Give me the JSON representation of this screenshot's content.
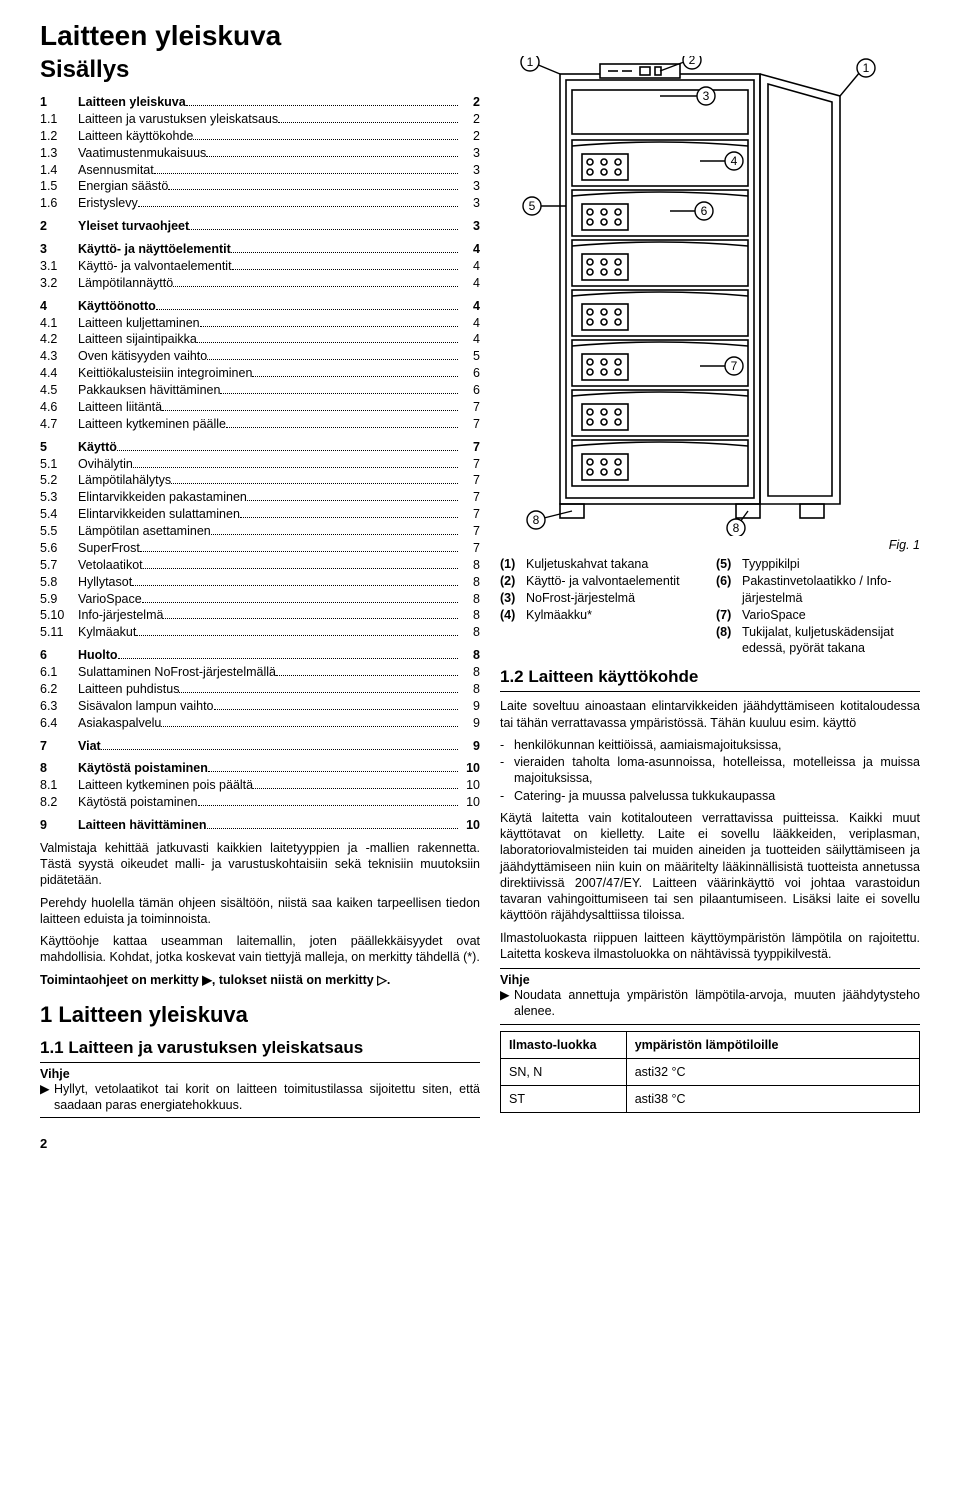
{
  "page_title": "Laitteen yleiskuva",
  "toc_heading": "Sisällys",
  "toc": [
    {
      "n": "1",
      "t": "Laitteen yleiskuva",
      "p": "2",
      "b": true,
      "gap": false
    },
    {
      "n": "1.1",
      "t": "Laitteen ja varustuksen yleiskatsaus",
      "p": "2",
      "b": false
    },
    {
      "n": "1.2",
      "t": "Laitteen käyttökohde",
      "p": "2",
      "b": false
    },
    {
      "n": "1.3",
      "t": "Vaatimustenmukaisuus",
      "p": "3",
      "b": false
    },
    {
      "n": "1.4",
      "t": "Asennusmitat",
      "p": "3",
      "b": false
    },
    {
      "n": "1.5",
      "t": "Energian säästö",
      "p": "3",
      "b": false
    },
    {
      "n": "1.6",
      "t": "Eristyslevy",
      "p": "3",
      "b": false
    },
    {
      "n": "2",
      "t": "Yleiset turvaohjeet",
      "p": "3",
      "b": true,
      "gap": true
    },
    {
      "n": "3",
      "t": "Käyttö- ja näyttöelementit",
      "p": "4",
      "b": true,
      "gap": true
    },
    {
      "n": "3.1",
      "t": "Käyttö- ja valvontaelementit",
      "p": "4",
      "b": false
    },
    {
      "n": "3.2",
      "t": "Lämpötilannäyttö",
      "p": "4",
      "b": false
    },
    {
      "n": "4",
      "t": "Käyttöönotto",
      "p": "4",
      "b": true,
      "gap": true
    },
    {
      "n": "4.1",
      "t": "Laitteen kuljettaminen",
      "p": "4",
      "b": false
    },
    {
      "n": "4.2",
      "t": "Laitteen sijaintipaikka",
      "p": "4",
      "b": false
    },
    {
      "n": "4.3",
      "t": "Oven kätisyyden vaihto",
      "p": "5",
      "b": false
    },
    {
      "n": "4.4",
      "t": "Keittiökalusteisiin integroiminen",
      "p": "6",
      "b": false
    },
    {
      "n": "4.5",
      "t": "Pakkauksen hävittäminen",
      "p": "6",
      "b": false
    },
    {
      "n": "4.6",
      "t": "Laitteen liitäntä",
      "p": "7",
      "b": false
    },
    {
      "n": "4.7",
      "t": "Laitteen kytkeminen päälle",
      "p": "7",
      "b": false
    },
    {
      "n": "5",
      "t": "Käyttö",
      "p": "7",
      "b": true,
      "gap": true
    },
    {
      "n": "5.1",
      "t": "Ovihälytin",
      "p": "7",
      "b": false
    },
    {
      "n": "5.2",
      "t": "Lämpötilahälytys",
      "p": "7",
      "b": false
    },
    {
      "n": "5.3",
      "t": "Elintarvikkeiden pakastaminen",
      "p": "7",
      "b": false
    },
    {
      "n": "5.4",
      "t": "Elintarvikkeiden sulattaminen",
      "p": "7",
      "b": false
    },
    {
      "n": "5.5",
      "t": "Lämpötilan asettaminen",
      "p": "7",
      "b": false
    },
    {
      "n": "5.6",
      "t": "SuperFrost",
      "p": "7",
      "b": false
    },
    {
      "n": "5.7",
      "t": "Vetolaatikot",
      "p": "8",
      "b": false
    },
    {
      "n": "5.8",
      "t": "Hyllytasot",
      "p": "8",
      "b": false
    },
    {
      "n": "5.9",
      "t": "VarioSpace",
      "p": "8",
      "b": false
    },
    {
      "n": "5.10",
      "t": "Info-järjestelmä",
      "p": "8",
      "b": false
    },
    {
      "n": "5.11",
      "t": "Kylmäakut",
      "p": "8",
      "b": false
    },
    {
      "n": "6",
      "t": "Huolto",
      "p": "8",
      "b": true,
      "gap": true
    },
    {
      "n": "6.1",
      "t": "Sulattaminen NoFrost-järjestelmällä",
      "p": "8",
      "b": false
    },
    {
      "n": "6.2",
      "t": "Laitteen puhdistus",
      "p": "8",
      "b": false
    },
    {
      "n": "6.3",
      "t": "Sisävalon lampun vaihto",
      "p": "9",
      "b": false
    },
    {
      "n": "6.4",
      "t": "Asiakaspalvelu",
      "p": "9",
      "b": false
    },
    {
      "n": "7",
      "t": "Viat",
      "p": "9",
      "b": true,
      "gap": true
    },
    {
      "n": "8",
      "t": "Käytöstä poistaminen",
      "p": "10",
      "b": true,
      "gap": true
    },
    {
      "n": "8.1",
      "t": "Laitteen kytkeminen pois päältä",
      "p": "10",
      "b": false
    },
    {
      "n": "8.2",
      "t": "Käytöstä poistaminen",
      "p": "10",
      "b": false
    },
    {
      "n": "9",
      "t": "Laitteen hävittäminen",
      "p": "10",
      "b": true,
      "gap": true
    }
  ],
  "left_paras": [
    "Valmistaja kehittää jatkuvasti kaikkien laitetyyppien ja -mallien rakennetta. Tästä syystä oikeudet malli- ja varustuskohtaisiin sekä teknisiin muutoksiin pidätetään.",
    "Perehdy huolella tämän ohjeen sisältöön, niistä saa kaiken tarpeellisen tiedon laitteen eduista ja toiminnoista.",
    "Käyttöohje kattaa useamman laitemallin, joten päällekkäisyydet ovat mahdollisia. Kohdat, jotka koskevat vain tiettyjä malleja, on merkitty tähdellä (*)."
  ],
  "left_para_bold": "Toimintaohjeet on merkitty ▶, tulokset niistä on merkitty ▷.",
  "left_h1": "1 Laitteen yleiskuva",
  "left_h2": "1.1 Laitteen ja varustuksen yleiskatsaus",
  "left_hint_label": "Vihje",
  "left_hint": "Hyllyt, vetolaatikot tai korit on laitteen toimitustilassa sijoitettu siten, että saadaan paras energiatehokkuus.",
  "fig_caption": "Fig. 1",
  "legend_left": [
    {
      "n": "(1)",
      "t": "Kuljetuskahvat takana"
    },
    {
      "n": "(2)",
      "t": "Käyttö- ja valvontaelementit"
    },
    {
      "n": "(3)",
      "t": "NoFrost-järjestelmä"
    },
    {
      "n": "(4)",
      "t": "Kylmäakku*"
    }
  ],
  "legend_right": [
    {
      "n": "(5)",
      "t": "Tyyppikilpi"
    },
    {
      "n": "(6)",
      "t": "Pakastinvetolaatikko / Info-järjestelmä"
    },
    {
      "n": "(7)",
      "t": "VarioSpace"
    },
    {
      "n": "(8)",
      "t": "Tukijalat, kuljetuskädensijat edessä, pyörät takana"
    }
  ],
  "right_h2": "1.2 Laitteen käyttökohde",
  "right_para1": "Laite soveltuu ainoastaan elintarvikkeiden jäähdyttämiseen kotitaloudessa tai tähän verrattavassa ympäristössä. Tähän kuuluu esim. käyttö",
  "right_list": [
    "henkilökunnan keittiöissä, aamiaismajoituksissa,",
    "vieraiden taholta loma-asunnoissa, hotelleissa, motelleissa ja muissa majoituksissa,",
    "Catering- ja muussa palvelussa tukkukaupassa"
  ],
  "right_para2": "Käytä laitetta vain kotitalouteen verrattavissa puitteissa. Kaikki muut käyttötavat on kielletty. Laite ei sovellu lääkkeiden, veriplasman, laboratoriovalmisteiden tai muiden aineiden ja tuotteiden säilyttämiseen ja jäähdyttämiseen niin kuin on määritelty lääkinnällisistä tuotteista annetussa direktiivissä 2007/47/EY. Laitteen väärinkäyttö voi johtaa varastoidun tavaran vahingoittumiseen tai sen pilaantumiseen. Lisäksi laite ei sovellu käyttöön räjähdysalttiissa tiloissa.",
  "right_para3": "Ilmastoluokasta riippuen laitteen käyttöympäristön lämpötila on rajoitettu. Laitetta koskeva ilmastoluokka on nähtävissä tyyppikilvestä.",
  "right_hint_label": "Vihje",
  "right_hint": "Noudata annettuja ympäristön lämpötila-arvoja, muuten jäähdytysteho alenee.",
  "climate_head1": "Ilmasto-luokka",
  "climate_head2": "ympäristön lämpötiloille",
  "climate_rows": [
    {
      "a": "SN, N",
      "b": "asti32 °C"
    },
    {
      "a": "ST",
      "b": "asti38 °C"
    }
  ],
  "page_number": "2"
}
